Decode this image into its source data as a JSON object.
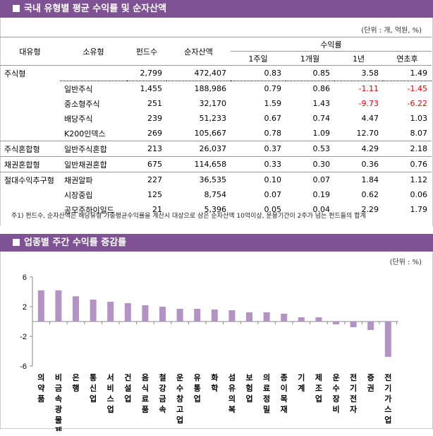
{
  "section1": {
    "title": "국내 유형별 평균 수익률 및 순자산액",
    "unit": "(단위 : 개, 억원, %)",
    "headers": {
      "major": "대유형",
      "minor": "소유형",
      "funds": "펀드수",
      "assets": "순자산액",
      "returns": "수익률",
      "w1": "1주일",
      "m1": "1개월",
      "y1": "1년",
      "ytd": "연초후"
    },
    "rows": [
      {
        "major": "주식형",
        "minor": "",
        "funds": "2,799",
        "assets": "472,407",
        "w1": "0.83",
        "m1": "0.85",
        "y1": "3.58",
        "ytd": "1.49"
      },
      {
        "major": "",
        "minor": "일반주식",
        "funds": "1,455",
        "assets": "188,986",
        "w1": "0.79",
        "m1": "0.86",
        "y1": "-1.11",
        "ytd": "-1.45"
      },
      {
        "major": "",
        "minor": "중소형주식",
        "funds": "251",
        "assets": "32,170",
        "w1": "1.59",
        "m1": "1.43",
        "y1": "-9.73",
        "ytd": "-6.22"
      },
      {
        "major": "",
        "minor": "배당주식",
        "funds": "239",
        "assets": "51,233",
        "w1": "0.67",
        "m1": "0.74",
        "y1": "4.47",
        "ytd": "1.03"
      },
      {
        "major": "",
        "minor": "K200인덱스",
        "funds": "269",
        "assets": "105,667",
        "w1": "0.78",
        "m1": "1.09",
        "y1": "12.70",
        "ytd": "8.07"
      },
      {
        "major": "주식혼합형",
        "minor": "일반주식혼합",
        "funds": "213",
        "assets": "26,037",
        "w1": "0.37",
        "m1": "0.53",
        "y1": "4.29",
        "ytd": "2.18"
      },
      {
        "major": "채권혼합형",
        "minor": "일반채권혼합",
        "funds": "675",
        "assets": "114,658",
        "w1": "0.33",
        "m1": "0.30",
        "y1": "0.36",
        "ytd": "0.76"
      },
      {
        "major": "절대수익추구형",
        "minor": "채권알파",
        "funds": "227",
        "assets": "36,535",
        "w1": "0.10",
        "m1": "0.07",
        "y1": "1.84",
        "ytd": "1.12"
      },
      {
        "major": "",
        "minor": "시장중립",
        "funds": "125",
        "assets": "8,754",
        "w1": "0.07",
        "m1": "0.19",
        "y1": "0.62",
        "ytd": "0.06"
      },
      {
        "major": "",
        "minor": "공모주하이일드",
        "funds": "21",
        "assets": "5,396",
        "w1": "0.05",
        "m1": "0.04",
        "y1": "2.29",
        "ytd": "1.79"
      }
    ],
    "footnote": "주1) 펀드수, 순자산액은 해당유형 가중평균수익률을 계산시 대상으로 삼은 순자산액 10억이상, 운용기간이 2주가 넘는 펀드들의 합계"
  },
  "section2": {
    "title": "업종별 주간 수익률 증감률",
    "unit": "(단위 : %)"
  },
  "colors": {
    "header": "#7f5296",
    "bar": "#b392c4",
    "negative": "#e00000"
  },
  "chart_data": {
    "type": "bar",
    "categories": [
      "의약품",
      "비금속광물제품",
      "은행",
      "통신업",
      "서비스업",
      "건설업",
      "음식료품",
      "철강금속",
      "운수창고업",
      "유통업",
      "화학",
      "섬유의복",
      "보험업",
      "의료정밀",
      "종이목재",
      "기계",
      "제조업",
      "운수장비",
      "전기전자",
      "증권",
      "전기가스업"
    ],
    "values": [
      4.2,
      4.2,
      3.4,
      2.95,
      2.67,
      2.48,
      2.19,
      2.0,
      1.71,
      1.71,
      1.62,
      1.52,
      1.24,
      1.24,
      1.05,
      0.57,
      0.57,
      -0.38,
      -0.76,
      -1.14,
      -4.76
    ],
    "ylim": [
      -6,
      6
    ],
    "yticks": [
      "6",
      "2",
      "-2",
      "-6"
    ],
    "tick_values": [
      6,
      2,
      -2,
      -6
    ]
  }
}
